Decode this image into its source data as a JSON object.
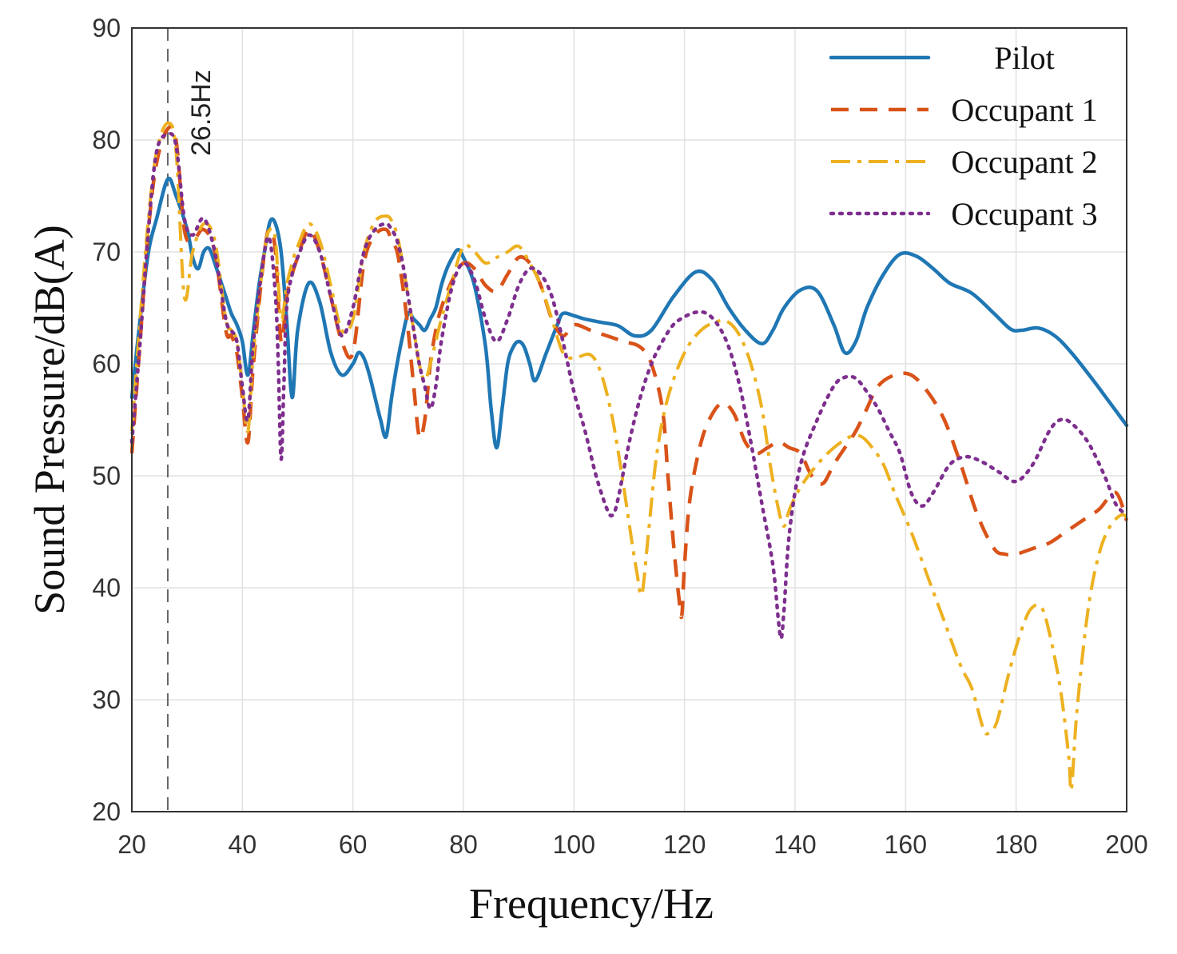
{
  "chart_data": {
    "type": "line",
    "title": "",
    "xlabel": "Frequency/Hz",
    "ylabel": "Sound Pressure/dB(A)",
    "xlim": [
      20,
      200
    ],
    "ylim": [
      20,
      90
    ],
    "xticks": [
      20,
      40,
      60,
      80,
      100,
      120,
      140,
      160,
      180,
      200
    ],
    "yticks": [
      20,
      30,
      40,
      50,
      60,
      70,
      80,
      90
    ],
    "grid": true,
    "legend_position": "top-right",
    "annotation": {
      "text": "26.5Hz",
      "x": 26.5
    },
    "series": [
      {
        "name": "Pilot",
        "color": "#1f77b4",
        "dash": "solid",
        "x": [
          20,
          21.5,
          23,
          24.5,
          26.5,
          28,
          30,
          31,
          32,
          33,
          34,
          35,
          37,
          38,
          39,
          40,
          41,
          42,
          43,
          44,
          45,
          46,
          47,
          48,
          49,
          50,
          52,
          54,
          56,
          58,
          60,
          61,
          62,
          63,
          64,
          65,
          66,
          67,
          68,
          69,
          70,
          71,
          72,
          73,
          74,
          75,
          76,
          77,
          78,
          79,
          80,
          82,
          84,
          85,
          86,
          87,
          88,
          89,
          90,
          91,
          92,
          93,
          95,
          97,
          98,
          100,
          102,
          105,
          108,
          111,
          114,
          118,
          122,
          125,
          128,
          131,
          134,
          136,
          138,
          141,
          144,
          147,
          149,
          151,
          153,
          156,
          159,
          162,
          165,
          168,
          172,
          176,
          179,
          181,
          184,
          187,
          190,
          194,
          197,
          200
        ],
        "y": [
          57,
          64,
          70,
          73,
          76.5,
          75,
          72,
          69.5,
          68.5,
          70,
          70.3,
          69,
          66,
          64.5,
          63.5,
          62,
          59,
          63,
          67,
          70,
          72.7,
          72.5,
          70,
          64,
          57,
          63,
          67.2,
          65.5,
          61,
          59,
          60,
          61,
          60.5,
          59,
          57,
          55,
          53.5,
          57,
          60,
          62.5,
          64.5,
          64,
          63.5,
          63,
          64,
          65,
          67,
          68.5,
          69.5,
          70.2,
          69.5,
          67,
          61.5,
          56,
          52.5,
          56,
          60,
          61.5,
          62,
          61.5,
          60,
          58.5,
          61,
          63.5,
          64.5,
          64.3,
          64,
          63.7,
          63.4,
          62.5,
          63,
          66,
          68.2,
          67.5,
          65,
          63,
          61.8,
          63,
          65,
          66.6,
          66.5,
          63.5,
          61,
          62,
          65,
          68,
          69.8,
          69.6,
          68.5,
          67.2,
          66.3,
          64.5,
          63.1,
          63,
          63.2,
          62.5,
          61,
          58.5,
          56.5,
          54.5
        ]
      },
      {
        "name": "Occupant 1",
        "color": "#d95319",
        "dash": "dashed",
        "x": [
          20,
          21.5,
          23,
          24.5,
          26.5,
          28,
          29.5,
          31,
          33,
          35,
          37,
          38,
          39,
          40,
          41,
          42,
          44,
          45,
          46,
          47,
          48,
          49,
          50,
          52,
          54,
          56,
          58,
          60,
          62,
          64,
          66,
          67,
          68,
          69,
          70,
          71,
          72,
          73,
          74,
          75,
          76,
          78,
          80,
          82,
          84,
          86,
          88,
          90,
          92,
          94,
          96,
          98,
          100,
          103,
          106,
          109,
          112,
          114,
          116,
          117,
          118,
          119,
          119.5,
          120,
          121,
          123,
          125,
          127,
          129,
          131,
          133,
          135,
          137,
          139,
          141,
          143,
          145,
          147,
          149,
          151,
          153,
          155,
          158,
          161,
          164,
          167,
          170,
          173,
          176,
          178,
          180,
          183,
          186,
          189,
          192,
          195,
          198,
          200
        ],
        "y": [
          52,
          62,
          72,
          78,
          81,
          80,
          72,
          71,
          72,
          70,
          63,
          62.5,
          61,
          57,
          53,
          60,
          70,
          72,
          70,
          62,
          66,
          68,
          69.5,
          72,
          70,
          66,
          62,
          61,
          69,
          71.5,
          72,
          71,
          70,
          67,
          63,
          58,
          53.5,
          55,
          60,
          63,
          65,
          67.5,
          69,
          68.5,
          67,
          66.5,
          68,
          69.5,
          69,
          67,
          64,
          62.5,
          63.5,
          63,
          62.5,
          62,
          61.5,
          60,
          56,
          50,
          44,
          39,
          37.5,
          42,
          48,
          53,
          55.5,
          56.5,
          55.5,
          53,
          52,
          52.5,
          53,
          52.5,
          52,
          50,
          49.3,
          51,
          52.5,
          54,
          56,
          58,
          59,
          59,
          57.5,
          55,
          51,
          46.5,
          43.5,
          43,
          43,
          43.5,
          44,
          45,
          46,
          47,
          48.5,
          46
        ]
      },
      {
        "name": "Occupant 2",
        "color": "#edb120",
        "dash": "dashdot",
        "x": [
          20,
          21.5,
          23,
          24.5,
          26.5,
          28,
          29.5,
          31,
          33,
          35,
          37,
          38,
          39,
          40,
          41,
          42,
          44,
          45,
          46,
          47,
          48,
          49,
          50,
          52,
          54,
          56,
          58,
          60,
          62,
          64,
          66,
          67,
          68,
          69,
          70,
          71,
          72,
          73,
          74,
          75,
          76,
          78,
          80,
          82,
          84,
          86,
          88,
          90,
          92,
          94,
          96,
          98,
          100,
          103,
          105,
          107,
          109,
          110.5,
          111.5,
          112,
          112.5,
          113.5,
          115,
          117,
          120,
          123,
          126,
          128,
          130,
          132,
          134,
          135.5,
          137,
          138,
          139,
          141,
          144,
          147,
          150,
          152,
          154,
          156,
          158,
          161,
          164,
          167,
          170,
          172,
          174,
          175,
          176.5,
          178.5,
          180.5,
          182.5,
          184.5,
          186,
          188,
          189.5,
          190,
          191,
          193,
          195,
          197,
          199,
          200
        ],
        "y": [
          54,
          64,
          73,
          79,
          81.5,
          79,
          66,
          70,
          72.5,
          71,
          64,
          63,
          62,
          58,
          54,
          61,
          70,
          72,
          71,
          64,
          67,
          69,
          70.5,
          72.5,
          71,
          67,
          63,
          64,
          70,
          72.7,
          73.2,
          72.8,
          71.5,
          69,
          66,
          63,
          60,
          58.5,
          60,
          62,
          64,
          67.5,
          70.5,
          70,
          69,
          69.5,
          70,
          70.5,
          69,
          67,
          64,
          61,
          60.5,
          60.8,
          59,
          55,
          49,
          44,
          41,
          39.5,
          40,
          45,
          52,
          57,
          61,
          63,
          63.8,
          63.7,
          62.5,
          60,
          56,
          51,
          47,
          45.5,
          47,
          49,
          51,
          52.5,
          53.5,
          53.5,
          52.5,
          51,
          48.5,
          45,
          41,
          37,
          33,
          31,
          27.5,
          27,
          28,
          32,
          35.5,
          38,
          38.3,
          36,
          31,
          25,
          22,
          29,
          38,
          43,
          45.5,
          46.5,
          46.3
        ]
      },
      {
        "name": "Occupant 3",
        "color": "#7e2f8e",
        "dash": "dotted",
        "x": [
          20,
          21.5,
          23,
          24.5,
          26.5,
          28,
          29.5,
          31,
          33,
          35,
          37,
          38,
          39,
          40,
          41,
          42,
          44,
          45,
          46,
          46.5,
          47,
          47.5,
          48,
          49,
          50,
          52,
          54,
          56,
          58,
          60,
          62,
          64,
          66,
          67,
          68,
          69,
          70,
          71,
          72,
          73,
          74,
          75,
          76,
          78,
          80,
          82,
          84,
          86,
          88,
          90,
          92,
          94,
          96,
          98,
          100,
          102,
          104,
          106,
          107,
          108,
          110,
          112,
          114,
          116,
          118,
          120,
          122,
          124,
          126,
          128,
          130,
          132,
          134,
          136,
          137,
          137.5,
          138,
          139,
          141,
          144,
          147,
          149,
          151,
          153,
          155,
          157,
          159,
          161,
          163,
          165,
          168,
          171,
          174,
          177,
          180,
          183,
          186,
          188,
          190,
          193,
          196,
          198,
          200
        ],
        "y": [
          53,
          62,
          72,
          79,
          80.5,
          79.5,
          73,
          71.5,
          73,
          70,
          64,
          63,
          62,
          58,
          55,
          62,
          70,
          71,
          66,
          60,
          51.5,
          58,
          65,
          68,
          69.5,
          71.5,
          70,
          66,
          62.5,
          65,
          70,
          72,
          72.5,
          72,
          71,
          69,
          66,
          63,
          60,
          58,
          56,
          58,
          62,
          67,
          69,
          67.5,
          64,
          62,
          64,
          67,
          68.5,
          68,
          66,
          62,
          57.5,
          54,
          50,
          47,
          46.5,
          48,
          53,
          57,
          60,
          62,
          63.5,
          64.2,
          64.6,
          64.5,
          63.5,
          61.5,
          58,
          53,
          47.5,
          42,
          37,
          35.5,
          38,
          45,
          51,
          55,
          58,
          58.8,
          58.7,
          57.5,
          56,
          54,
          52,
          48.5,
          47.3,
          48.5,
          51,
          51.7,
          51.2,
          50.3,
          49.5,
          51,
          54,
          55,
          54.7,
          53,
          50,
          47.5,
          46.5
        ]
      }
    ]
  }
}
